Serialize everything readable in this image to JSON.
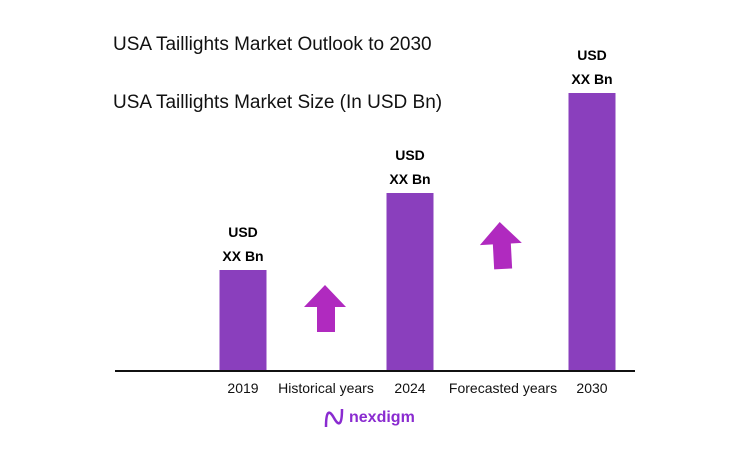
{
  "title": "USA Taillights Market Outlook to 2030",
  "subtitle": "USA Taillights Market Size (In USD Bn)",
  "chart_data": {
    "type": "bar",
    "categories": [
      "2019",
      "2024",
      "2030"
    ],
    "values": [
      100,
      177,
      277
    ],
    "data_labels": [
      [
        "USD",
        "XX Bn"
      ],
      [
        "USD",
        "XX Bn"
      ],
      [
        "USD",
        "XX Bn"
      ]
    ],
    "period_labels": [
      "Historical years",
      "Forecasted years"
    ],
    "bar_color": "#8a3fbd",
    "arrow_color": "#b02abf",
    "grid": false
  },
  "logo": {
    "text": "nexdigm"
  }
}
